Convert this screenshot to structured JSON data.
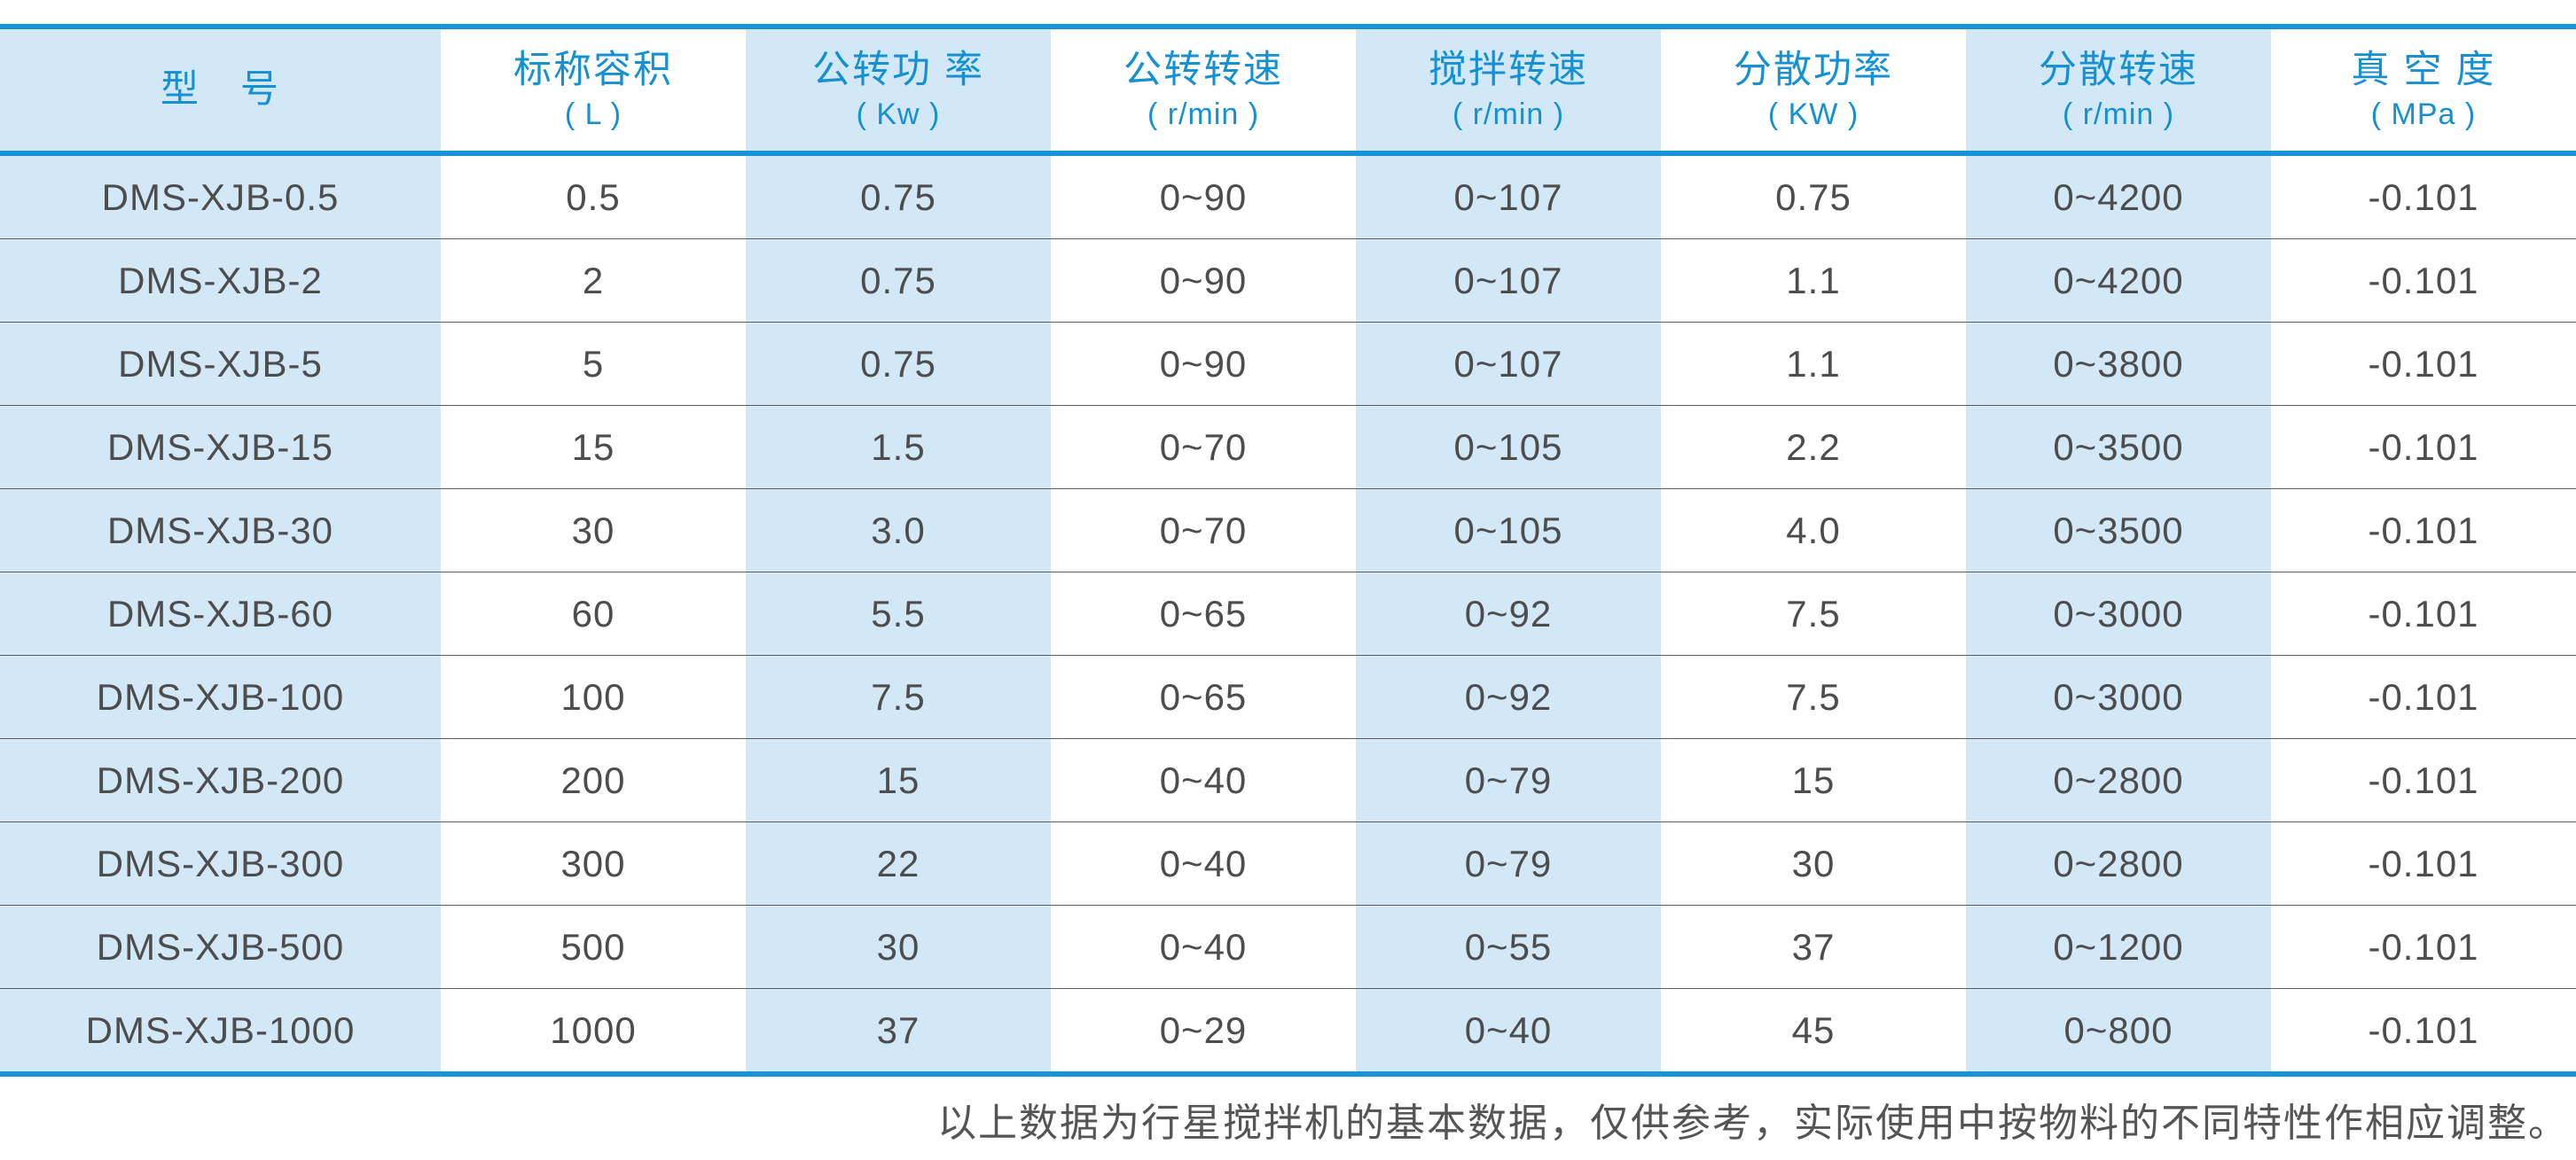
{
  "theme": {
    "accent_blue_border": "#1793d8",
    "header_text_blue": "#1590d2",
    "stripe_light_blue": "#d2e8f7",
    "stripe_white": "#ffffff",
    "data_text_gray": "#4d4d4d",
    "row_divider_gray": "#5e5e5e",
    "footer_text_gray": "#555555"
  },
  "table": {
    "columns": [
      {
        "title": "型　号",
        "unit": ""
      },
      {
        "title": "标称容积",
        "unit": "( L )"
      },
      {
        "title": "公转功 率",
        "unit": "( Kw )"
      },
      {
        "title": "公转转速",
        "unit": "( r/min )"
      },
      {
        "title": "搅拌转速",
        "unit": "( r/min )"
      },
      {
        "title": "分散功率",
        "unit": "( KW )"
      },
      {
        "title": "分散转速",
        "unit": "( r/min )"
      },
      {
        "title": "真 空 度",
        "unit": "( MPa )"
      }
    ],
    "rows": [
      [
        "DMS-XJB-0.5",
        "0.5",
        "0.75",
        "0~90",
        "0~107",
        "0.75",
        "0~4200",
        "-0.101"
      ],
      [
        "DMS-XJB-2",
        "2",
        "0.75",
        "0~90",
        "0~107",
        "1.1",
        "0~4200",
        "-0.101"
      ],
      [
        "DMS-XJB-5",
        "5",
        "0.75",
        "0~90",
        "0~107",
        "1.1",
        "0~3800",
        "-0.101"
      ],
      [
        "DMS-XJB-15",
        "15",
        "1.5",
        "0~70",
        "0~105",
        "2.2",
        "0~3500",
        "-0.101"
      ],
      [
        "DMS-XJB-30",
        "30",
        "3.0",
        "0~70",
        "0~105",
        "4.0",
        "0~3500",
        "-0.101"
      ],
      [
        "DMS-XJB-60",
        "60",
        "5.5",
        "0~65",
        "0~92",
        "7.5",
        "0~3000",
        "-0.101"
      ],
      [
        "DMS-XJB-100",
        "100",
        "7.5",
        "0~65",
        "0~92",
        "7.5",
        "0~3000",
        "-0.101"
      ],
      [
        "DMS-XJB-200",
        "200",
        "15",
        "0~40",
        "0~79",
        "15",
        "0~2800",
        "-0.101"
      ],
      [
        "DMS-XJB-300",
        "300",
        "22",
        "0~40",
        "0~79",
        "30",
        "0~2800",
        "-0.101"
      ],
      [
        "DMS-XJB-500",
        "500",
        "30",
        "0~40",
        "0~55",
        "37",
        "0~1200",
        "-0.101"
      ],
      [
        "DMS-XJB-1000",
        "1000",
        "37",
        "0~29",
        "0~40",
        "45",
        "0~800",
        "-0.101"
      ]
    ]
  },
  "footer": {
    "note": "以上数据为行星搅拌机的基本数据，仅供参考，实际使用中按物料的不同特性作相应调整。"
  }
}
